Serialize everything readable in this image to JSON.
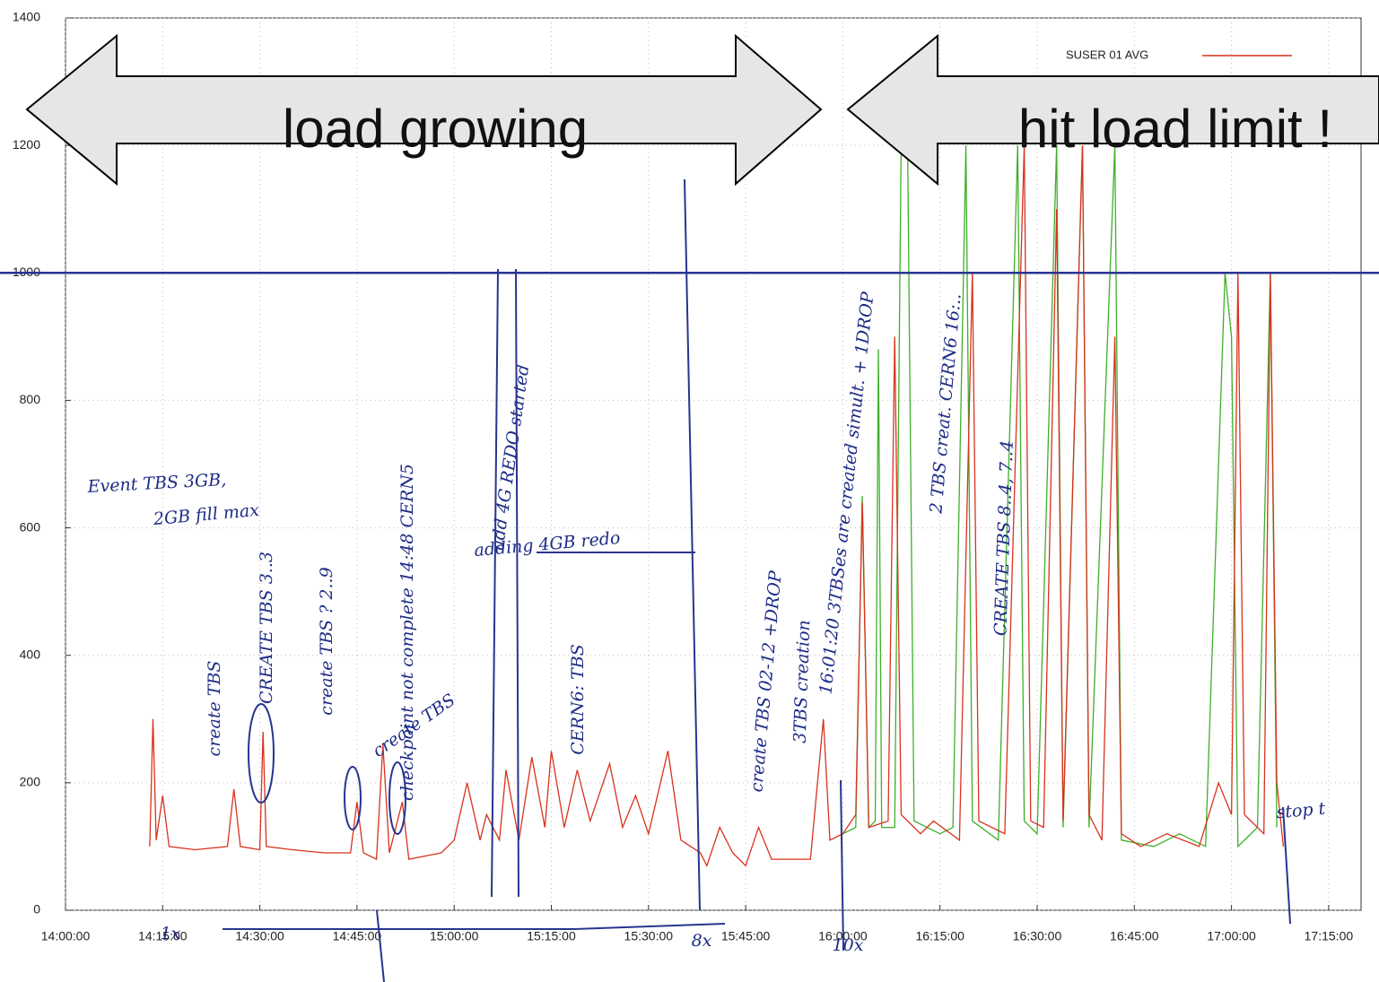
{
  "chart_data": {
    "type": "line",
    "big_labels": [
      "load growing",
      "hit load limit !"
    ],
    "xlim": [
      "14:00:00",
      "17:20:00"
    ],
    "xticks": [
      "14:00:00",
      "14:15:00",
      "14:30:00",
      "14:45:00",
      "15:00:00",
      "15:15:00",
      "15:30:00",
      "15:45:00",
      "16:00:00",
      "16:15:00",
      "16:30:00",
      "16:45:00",
      "17:00:00",
      "17:15:00"
    ],
    "ylim": [
      0,
      1400
    ],
    "yticks": [
      0,
      200,
      400,
      600,
      800,
      1000,
      1200,
      1400
    ],
    "grid": true,
    "legend": "top-right",
    "hline": 1000,
    "hline_color": "#27358f",
    "series": [
      {
        "name": "SUSER 01 AVG",
        "color": "#d8321e",
        "x": [
          "14:13:00",
          "14:13:30",
          "14:14:00",
          "14:15:00",
          "14:16:00",
          "14:20:00",
          "14:25:00",
          "14:26:00",
          "14:27:00",
          "14:30:00",
          "14:30:30",
          "14:31:00",
          "14:35:00",
          "14:40:00",
          "14:44:00",
          "14:45:00",
          "14:46:00",
          "14:48:00",
          "14:49:00",
          "14:50:00",
          "14:52:00",
          "14:53:00",
          "14:58:00",
          "15:00:00",
          "15:02:00",
          "15:04:00",
          "15:05:00",
          "15:07:00",
          "15:08:00",
          "15:10:00",
          "15:12:00",
          "15:14:00",
          "15:15:00",
          "15:17:00",
          "15:19:00",
          "15:21:00",
          "15:24:00",
          "15:26:00",
          "15:28:00",
          "15:30:00",
          "15:33:00",
          "15:35:00",
          "15:38:00",
          "15:39:00",
          "15:41:00",
          "15:43:00",
          "15:45:00",
          "15:47:00",
          "15:49:00",
          "15:52:00",
          "15:55:00",
          "15:57:00",
          "15:58:00",
          "16:00:00",
          "16:02:00",
          "16:03:00",
          "16:04:00",
          "16:07:00",
          "16:08:00",
          "16:09:00",
          "16:12:00",
          "16:14:00",
          "16:18:00",
          "16:20:00",
          "16:21:00",
          "16:25:00",
          "16:28:00",
          "16:29:00",
          "16:31:00",
          "16:33:00",
          "16:34:00",
          "16:37:00",
          "16:38:00",
          "16:40:00",
          "16:42:00",
          "16:43:00",
          "16:46:00",
          "16:50:00",
          "16:55:00",
          "16:58:00",
          "17:00:00",
          "17:01:00",
          "17:02:00",
          "17:05:00",
          "17:06:00",
          "17:07:00",
          "17:08:00"
        ],
        "values": [
          100,
          300,
          110,
          180,
          100,
          95,
          100,
          190,
          100,
          95,
          280,
          100,
          95,
          90,
          90,
          170,
          90,
          80,
          260,
          90,
          170,
          80,
          90,
          110,
          200,
          110,
          150,
          110,
          220,
          110,
          240,
          130,
          250,
          130,
          220,
          140,
          230,
          130,
          180,
          120,
          250,
          110,
          90,
          70,
          130,
          90,
          70,
          130,
          80,
          80,
          80,
          300,
          110,
          120,
          150,
          640,
          130,
          140,
          900,
          150,
          120,
          140,
          110,
          1000,
          140,
          120,
          1200,
          140,
          130,
          1100,
          140,
          1200,
          150,
          110,
          900,
          120,
          100,
          120,
          100,
          200,
          150,
          1000,
          150,
          120,
          1000,
          200,
          100
        ]
      },
      {
        "color": "#3fae2a",
        "x": [
          "16:00:00",
          "16:02:00",
          "16:03:00",
          "16:04:00",
          "16:05:00",
          "16:05:30",
          "16:06:00",
          "16:08:00",
          "16:09:00",
          "16:10:00",
          "16:11:00",
          "16:13:00",
          "16:15:00",
          "16:17:00",
          "16:19:00",
          "16:20:00",
          "16:24:00",
          "16:27:00",
          "16:28:00",
          "16:30:00",
          "16:33:00",
          "16:34:00",
          "16:37:00",
          "16:38:00",
          "16:42:00",
          "16:43:00",
          "16:48:00",
          "16:52:00",
          "16:56:00",
          "16:59:00",
          "17:00:00",
          "17:01:00",
          "17:04:00",
          "17:06:00",
          "17:07:00"
        ],
        "values": [
          120,
          130,
          650,
          130,
          140,
          880,
          130,
          130,
          1200,
          1200,
          140,
          130,
          120,
          130,
          1200,
          140,
          110,
          1200,
          140,
          120,
          1200,
          130,
          1200,
          130,
          1200,
          110,
          100,
          120,
          100,
          1000,
          900,
          100,
          130,
          1000,
          130
        ]
      }
    ],
    "annotations": [
      "Event TBS 3GB,",
      "2GB fill max",
      "CREATE TBS 3..3",
      "create TBS ? 2..9",
      "checkpoint not complete 14:48 CERN5",
      "create TBS",
      "create TBS",
      "add 4G REDO started",
      "adding 4GB redo",
      "CERN6: TBS",
      "create TBS 02-12 +DROP",
      "3TBS creation",
      "16:01:20 3TBSes are created simult. + 1DROP",
      "2 TBS creat. CERN6 16:..",
      "CREATE TBS 8..4, 7..4",
      "stop t",
      "1x",
      "8x",
      "10x"
    ]
  }
}
